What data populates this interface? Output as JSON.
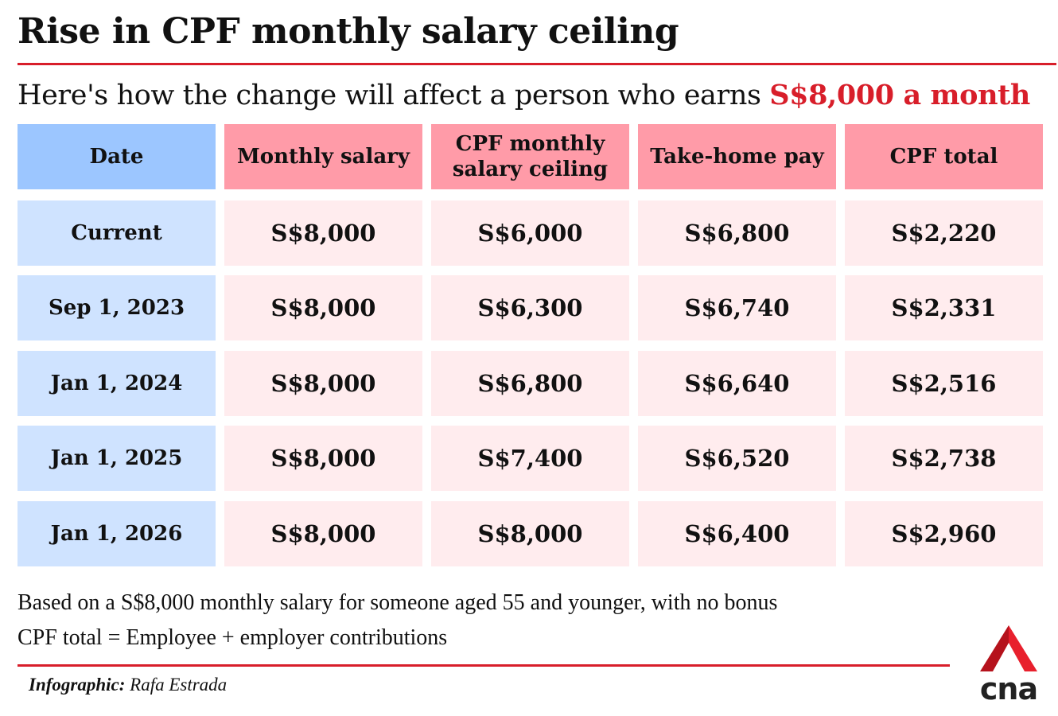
{
  "title": "Rise in CPF monthly salary ceiling",
  "subtitle": {
    "prefix": "Here's how the change will affect a person who earns ",
    "highlight": "S$8,000 a month"
  },
  "colors": {
    "accent_red": "#d81e2a",
    "header_blue": "#9cc6ff",
    "header_pink": "#ff9ba8",
    "cell_blue": "#cfe3ff",
    "cell_pink": "#ffecee"
  },
  "chart_data": {
    "type": "table",
    "columns": [
      "Date",
      "Monthly salary",
      "CPF monthly salary ceiling",
      "Take-home pay",
      "CPF total"
    ],
    "rows": [
      [
        "Current",
        "S$8,000",
        "S$6,000",
        "S$6,800",
        "S$2,220"
      ],
      [
        "Sep 1, 2023",
        "S$8,000",
        "S$6,300",
        "S$6,740",
        "S$2,331"
      ],
      [
        "Jan 1, 2024",
        "S$8,000",
        "S$6,800",
        "S$6,640",
        "S$2,516"
      ],
      [
        "Jan 1, 2025",
        "S$8,000",
        "S$7,400",
        "S$6,520",
        "S$2,738"
      ],
      [
        "Jan 1, 2026",
        "S$8,000",
        "S$8,000",
        "S$6,400",
        "S$2,960"
      ]
    ]
  },
  "notes": [
    "Based on a S$8,000 monthly salary for someone aged 55 and younger, with no bonus",
    "CPF total = Employee + employer contributions"
  ],
  "credit": {
    "label": "Infographic:",
    "name": "Rafa Estrada"
  },
  "logo": {
    "icon": "cna-logo-icon",
    "text": "cna"
  }
}
